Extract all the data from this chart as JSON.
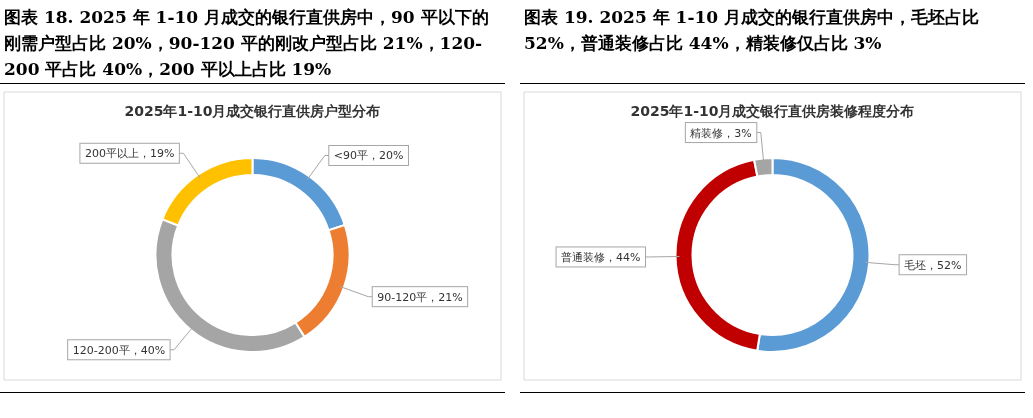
{
  "chart_data": [
    {
      "type": "donut",
      "title": "图表 18. 2025 年 1-10 月成交的银行直供房中，90 平以下的刚需户型占比 20%，90-120 平的刚改户型占比 21%，120-200 平占比 40%，200 平以上占比 19%",
      "subtitle": "2025年1-10月成交银行直供房户型分布",
      "categories": [
        "<90平",
        "90-120平",
        "120-200平",
        "200平以上"
      ],
      "values": [
        20,
        21,
        40,
        19
      ],
      "colors": [
        "#5b9bd5",
        "#ed7d31",
        "#a5a5a5",
        "#ffc000"
      ],
      "value_labels": [
        "，20%",
        "，21%",
        "，40%",
        "，19%"
      ]
    },
    {
      "type": "donut",
      "title": "图表 19. 2025 年 1-10 月成交的银行直供房中，毛坯占比 52%，普通装修占比 44%，精装修仅占比 3%",
      "subtitle": "2025年1-10月成交银行直供房装修程度分布",
      "categories": [
        "毛坯",
        "普通装修",
        "精装修"
      ],
      "values": [
        52,
        44,
        3
      ],
      "colors": [
        "#5b9bd5",
        "#c00000",
        "#a5a5a5"
      ],
      "value_labels": [
        "，52%",
        "，44%",
        "，3%"
      ]
    }
  ]
}
